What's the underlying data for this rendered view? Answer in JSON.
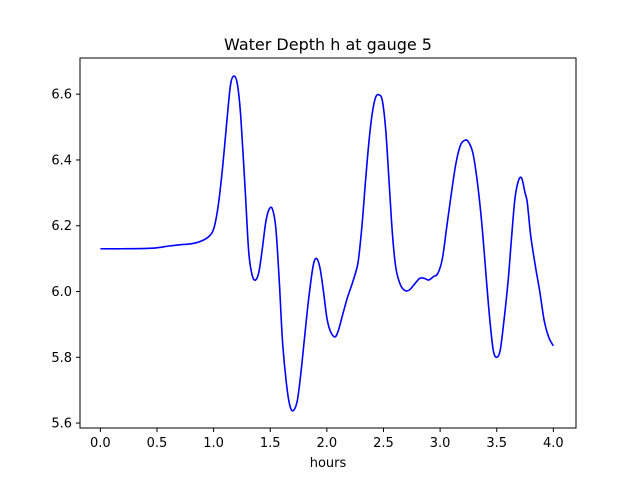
{
  "chart_data": {
    "type": "line",
    "title": "Water Depth h at gauge 5",
    "xlabel": "hours",
    "ylabel": "",
    "xlim": [
      -0.18,
      4.2
    ],
    "ylim": [
      5.585,
      6.71
    ],
    "grid": false,
    "legend": "none",
    "x_ticks": [
      {
        "value": 0.0,
        "label": "0.0"
      },
      {
        "value": 0.5,
        "label": "0.5"
      },
      {
        "value": 1.0,
        "label": "1.0"
      },
      {
        "value": 1.5,
        "label": "1.5"
      },
      {
        "value": 2.0,
        "label": "2.0"
      },
      {
        "value": 2.5,
        "label": "2.5"
      },
      {
        "value": 3.0,
        "label": "3.0"
      },
      {
        "value": 3.5,
        "label": "3.5"
      },
      {
        "value": 4.0,
        "label": "4.0"
      }
    ],
    "y_ticks": [
      {
        "value": 5.6,
        "label": "5.6"
      },
      {
        "value": 5.8,
        "label": "5.8"
      },
      {
        "value": 6.0,
        "label": "6.0"
      },
      {
        "value": 6.2,
        "label": "6.2"
      },
      {
        "value": 6.4,
        "label": "6.4"
      },
      {
        "value": 6.6,
        "label": "6.6"
      }
    ],
    "series": [
      {
        "color": "#0000ff",
        "points": [
          [
            0.0,
            6.13
          ],
          [
            0.2,
            6.13
          ],
          [
            0.4,
            6.131
          ],
          [
            0.5,
            6.133
          ],
          [
            0.6,
            6.138
          ],
          [
            0.7,
            6.142
          ],
          [
            0.8,
            6.145
          ],
          [
            0.88,
            6.152
          ],
          [
            0.95,
            6.165
          ],
          [
            1.0,
            6.19
          ],
          [
            1.04,
            6.26
          ],
          [
            1.08,
            6.38
          ],
          [
            1.12,
            6.53
          ],
          [
            1.15,
            6.63
          ],
          [
            1.18,
            6.655
          ],
          [
            1.21,
            6.63
          ],
          [
            1.24,
            6.53
          ],
          [
            1.28,
            6.3
          ],
          [
            1.31,
            6.12
          ],
          [
            1.34,
            6.05
          ],
          [
            1.37,
            6.035
          ],
          [
            1.4,
            6.06
          ],
          [
            1.43,
            6.13
          ],
          [
            1.46,
            6.21
          ],
          [
            1.49,
            6.25
          ],
          [
            1.52,
            6.25
          ],
          [
            1.55,
            6.19
          ],
          [
            1.58,
            6.03
          ],
          [
            1.61,
            5.84
          ],
          [
            1.65,
            5.7
          ],
          [
            1.68,
            5.645
          ],
          [
            1.71,
            5.64
          ],
          [
            1.74,
            5.67
          ],
          [
            1.77,
            5.75
          ],
          [
            1.8,
            5.85
          ],
          [
            1.84,
            5.98
          ],
          [
            1.88,
            6.08
          ],
          [
            1.91,
            6.1
          ],
          [
            1.94,
            6.07
          ],
          [
            1.97,
            6.0
          ],
          [
            2.0,
            5.92
          ],
          [
            2.03,
            5.88
          ],
          [
            2.07,
            5.862
          ],
          [
            2.1,
            5.88
          ],
          [
            2.14,
            5.93
          ],
          [
            2.18,
            5.98
          ],
          [
            2.22,
            6.02
          ],
          [
            2.26,
            6.065
          ],
          [
            2.28,
            6.1
          ],
          [
            2.31,
            6.2
          ],
          [
            2.34,
            6.33
          ],
          [
            2.37,
            6.45
          ],
          [
            2.4,
            6.54
          ],
          [
            2.43,
            6.59
          ],
          [
            2.46,
            6.598
          ],
          [
            2.49,
            6.58
          ],
          [
            2.52,
            6.49
          ],
          [
            2.55,
            6.33
          ],
          [
            2.58,
            6.17
          ],
          [
            2.61,
            6.07
          ],
          [
            2.65,
            6.02
          ],
          [
            2.69,
            6.003
          ],
          [
            2.73,
            6.005
          ],
          [
            2.78,
            6.025
          ],
          [
            2.82,
            6.04
          ],
          [
            2.86,
            6.04
          ],
          [
            2.9,
            6.035
          ],
          [
            2.94,
            6.045
          ],
          [
            2.98,
            6.055
          ],
          [
            3.02,
            6.1
          ],
          [
            3.06,
            6.2
          ],
          [
            3.1,
            6.3
          ],
          [
            3.14,
            6.39
          ],
          [
            3.18,
            6.445
          ],
          [
            3.22,
            6.46
          ],
          [
            3.25,
            6.455
          ],
          [
            3.29,
            6.42
          ],
          [
            3.33,
            6.33
          ],
          [
            3.37,
            6.2
          ],
          [
            3.41,
            6.03
          ],
          [
            3.44,
            5.91
          ],
          [
            3.47,
            5.82
          ],
          [
            3.5,
            5.8
          ],
          [
            3.53,
            5.82
          ],
          [
            3.56,
            5.9
          ],
          [
            3.6,
            6.03
          ],
          [
            3.63,
            6.16
          ],
          [
            3.66,
            6.28
          ],
          [
            3.69,
            6.335
          ],
          [
            3.72,
            6.345
          ],
          [
            3.75,
            6.3
          ],
          [
            3.77,
            6.27
          ],
          [
            3.8,
            6.17
          ],
          [
            3.84,
            6.08
          ],
          [
            3.88,
            6.0
          ],
          [
            3.92,
            5.91
          ],
          [
            3.96,
            5.86
          ],
          [
            4.0,
            5.835
          ]
        ]
      }
    ]
  }
}
